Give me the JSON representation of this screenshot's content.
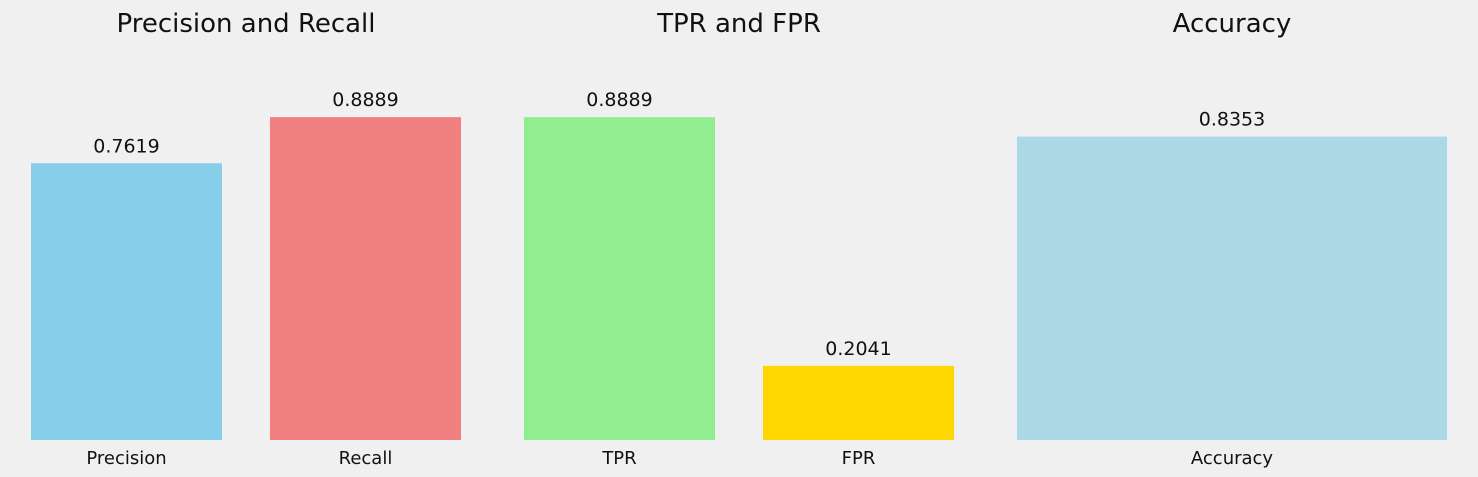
{
  "chart_data": [
    {
      "type": "bar",
      "title": "Precision and Recall",
      "categories": [
        "Precision",
        "Recall"
      ],
      "values": [
        0.7619,
        0.8889
      ],
      "value_labels": [
        "0.7619",
        "0.8889"
      ],
      "colors": [
        "#87ceeb",
        "#f08080"
      ],
      "ylim": [
        0,
        1.06
      ],
      "xlabel": "",
      "ylabel": "",
      "grid": false,
      "y_axis_visible": false
    },
    {
      "type": "bar",
      "title": "TPR and FPR",
      "categories": [
        "TPR",
        "FPR"
      ],
      "values": [
        0.8889,
        0.2041
      ],
      "value_labels": [
        "0.8889",
        "0.2041"
      ],
      "colors": [
        "#90ee90",
        "#ffd700"
      ],
      "ylim": [
        0,
        1.06
      ],
      "xlabel": "",
      "ylabel": "",
      "grid": false,
      "y_axis_visible": false
    },
    {
      "type": "bar",
      "title": "Accuracy",
      "categories": [
        "Accuracy"
      ],
      "values": [
        0.8353
      ],
      "value_labels": [
        "0.8353"
      ],
      "colors": [
        "#add8e6"
      ],
      "ylim": [
        0,
        1.06
      ],
      "xlabel": "",
      "ylabel": "",
      "grid": false,
      "y_axis_visible": false
    }
  ]
}
